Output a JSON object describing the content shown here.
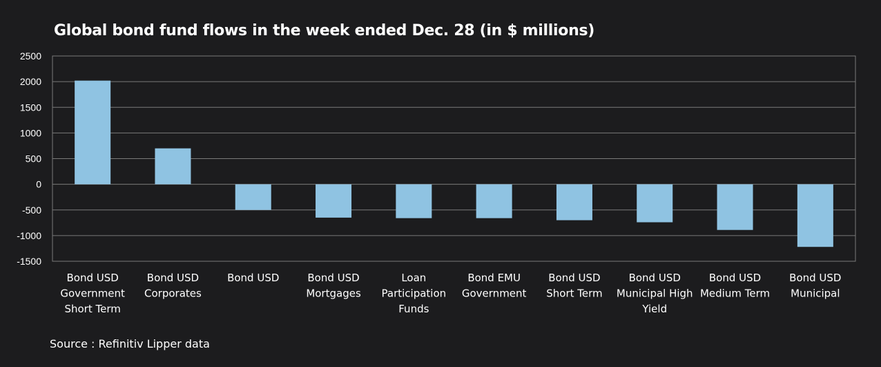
{
  "chart_data": {
    "type": "bar",
    "title": "Global bond fund flows in the week ended Dec. 28 (in $ millions)",
    "source": "Source : Refinitiv Lipper data",
    "categories": [
      [
        "Bond USD",
        "Government",
        "Short Term"
      ],
      [
        "Bond USD",
        "Corporates"
      ],
      [
        "Bond USD"
      ],
      [
        "Bond USD",
        "Mortgages"
      ],
      [
        "Loan",
        "Participation",
        "Funds"
      ],
      [
        "Bond EMU",
        "Government"
      ],
      [
        "Bond USD",
        "Short Term"
      ],
      [
        "Bond USD",
        "Municipal High",
        "Yield"
      ],
      [
        "Bond USD",
        "Medium Term"
      ],
      [
        "Bond USD",
        "Municipal"
      ]
    ],
    "values": [
      2020,
      700,
      -500,
      -650,
      -660,
      -660,
      -700,
      -740,
      -890,
      -1220
    ],
    "ylim": [
      -1500,
      2500
    ],
    "yticks": [
      2500,
      2000,
      1500,
      1000,
      500,
      0,
      -500,
      -1000,
      -1500
    ],
    "grid": true,
    "legend": "none",
    "colors": {
      "background": "#1c1c1e",
      "bar": "#8fc3e2",
      "grid": "#7a7a7a",
      "text": "#ffffff"
    }
  }
}
